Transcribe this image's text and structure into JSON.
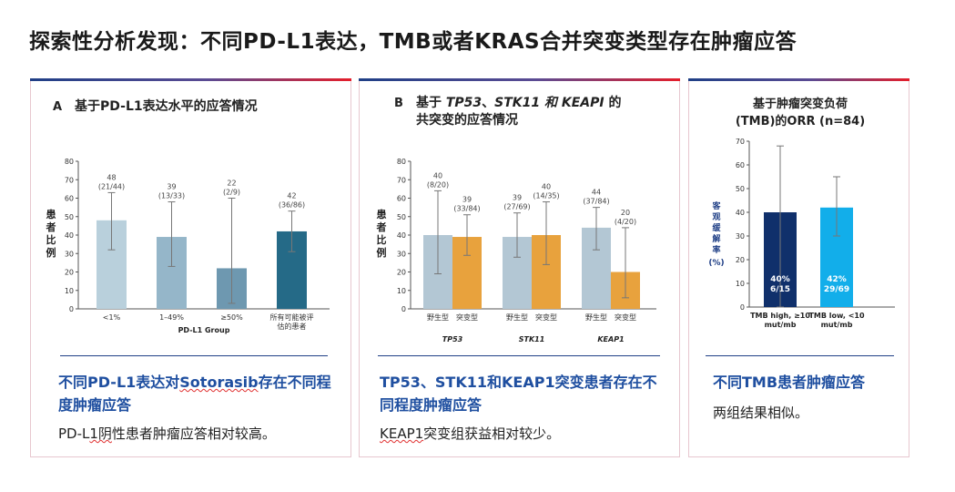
{
  "page": {
    "title": "探索性分析发现：不同PD-L1表达，TMB或者KRAS合并突变类型存在肿瘤应答"
  },
  "panels": [
    {
      "headline_pre": "不同PD-L1表达对",
      "headline_link": "Sotorasib",
      "headline_post": "存在不同程度肿瘤应答",
      "desc_pre": "PD-L",
      "desc_link": "1阴",
      "desc_post": "性患者肿瘤应答相对较高。"
    },
    {
      "headline_pre": "TP53、STK11和KEAP1突变患者存在不同程度肿瘤应答",
      "headline_link": "",
      "headline_post": "",
      "desc_pre": "",
      "desc_link": "KEAP1",
      "desc_post": "突变组获益相对较少。"
    },
    {
      "headline_pre": "不同TMB患者肿瘤应答",
      "headline_link": "",
      "headline_post": "",
      "desc_pre": "两组结果相似。",
      "desc_link": "",
      "desc_post": ""
    }
  ],
  "chart_data": [
    {
      "type": "bar",
      "panel_letter": "A",
      "title": "基于PD-L1表达水平的应答情况",
      "ylabel": "患者比例",
      "xlabel": "PD-L1 Group",
      "ylim": [
        0,
        80
      ],
      "yticks": [
        0,
        10,
        20,
        30,
        40,
        50,
        60,
        70,
        80
      ],
      "categories": [
        "<1%",
        "1–49%",
        "≥50%",
        "所有可能被评估的患者"
      ],
      "values": [
        48,
        39,
        22,
        42
      ],
      "ci_low": [
        32,
        23,
        3,
        31
      ],
      "ci_high": [
        63,
        58,
        60,
        53
      ],
      "labels": [
        "48",
        "39",
        "22",
        "42"
      ],
      "sublabels": [
        "(21/44)",
        "(13/33)",
        "(2/9)",
        "(36/86)"
      ],
      "colors": [
        "#b9d0dc",
        "#95b6c9",
        "#6e98b0",
        "#256a87"
      ],
      "grid": false
    },
    {
      "type": "bar",
      "panel_letter": "B",
      "title_parts": [
        {
          "text": "基于 ",
          "italic": false
        },
        {
          "text": "TP53",
          "italic": true
        },
        {
          "text": "、",
          "italic": false
        },
        {
          "text": "STK11",
          "italic": true
        },
        {
          "text": " 和 ",
          "italic": true
        },
        {
          "text": "KEAPI",
          "italic": true
        },
        {
          "text": " 的",
          "italic": false
        }
      ],
      "title_line2": "共突变的应答情况",
      "ylabel": "患者比例",
      "ylim": [
        0,
        80
      ],
      "yticks": [
        0,
        10,
        20,
        30,
        40,
        50,
        60,
        70,
        80
      ],
      "groups": [
        "TP53",
        "STK11",
        "KEAP1"
      ],
      "subcategories": [
        "野生型",
        "突变型"
      ],
      "series": [
        {
          "name": "野生型",
          "color": "#b3c7d4",
          "values": [
            40,
            39,
            44
          ],
          "ci_low": [
            19,
            28,
            32
          ],
          "ci_high": [
            64,
            52,
            55
          ],
          "labels": [
            "40",
            "39",
            "44"
          ],
          "sublabels": [
            "(8/20)",
            "(27/69)",
            "(37/84)"
          ]
        },
        {
          "name": "突变型",
          "color": "#e8a23d",
          "values": [
            39,
            40,
            20
          ],
          "ci_low": [
            29,
            24,
            6
          ],
          "ci_high": [
            51,
            58,
            44
          ],
          "labels": [
            "39",
            "40",
            "20"
          ],
          "sublabels": [
            "(33/84)",
            "(14/35)",
            "(4/20)"
          ]
        }
      ],
      "grid": false
    },
    {
      "type": "bar",
      "title_line1": "基于肿瘤突变负荷",
      "title_line2": "(TMB)的ORR (n=84)",
      "ylabel": "客观缓解率 (%)",
      "ylim": [
        0,
        70
      ],
      "yticks": [
        0,
        10,
        20,
        30,
        40,
        50,
        60,
        70
      ],
      "categories": [
        "TMB high, ≥10 mut/mb",
        "TMB low, <10 mut/mb"
      ],
      "values": [
        40,
        42
      ],
      "ci_low": [
        0,
        30
      ],
      "ci_high": [
        68,
        55
      ],
      "labels": [
        "40%",
        "42%"
      ],
      "sublabels": [
        "6/15",
        "29/69"
      ],
      "colors": [
        "#10306b",
        "#12aeea"
      ],
      "grid": false
    }
  ]
}
